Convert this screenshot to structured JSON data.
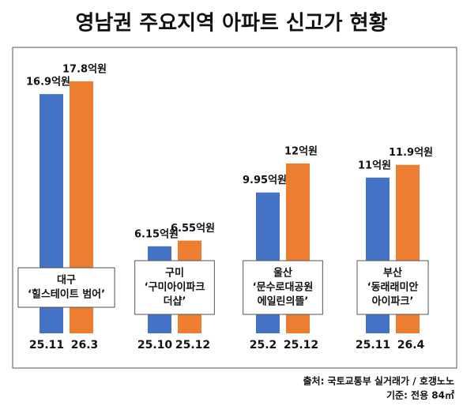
{
  "chart_data": {
    "type": "bar",
    "title": "영남권 주요지역 아파트 신고가 현황",
    "categories": [
      [
        "대구",
        "‘힐스테이트 범어’"
      ],
      [
        "구미",
        "‘구미아이파크",
        "더샵’"
      ],
      [
        "울산",
        "‘문수로대공원",
        "에일린의뜰’"
      ],
      [
        "부산",
        "‘동래래미안",
        "아이파크’"
      ]
    ],
    "series": [
      {
        "color": "#4472c4",
        "values": [
          16.9,
          6.15,
          9.95,
          11
        ],
        "value_labels": [
          "16.9억원",
          "6.15억원",
          "9.95억원",
          "11억원"
        ],
        "x_labels": [
          "25.11",
          "25.10",
          "25.2",
          "25.11"
        ]
      },
      {
        "color": "#ed7d31",
        "values": [
          17.8,
          6.55,
          12,
          11.9
        ],
        "value_labels": [
          "17.8억원",
          "6.55억원",
          "12억원",
          "11.9억원"
        ],
        "x_labels": [
          "26.3",
          "25.12",
          "25.12",
          "26.4"
        ]
      }
    ],
    "source": [
      "출처: 국토교통부 실거래가 / 호갱노노",
      "기준: 전용 84㎡"
    ]
  }
}
